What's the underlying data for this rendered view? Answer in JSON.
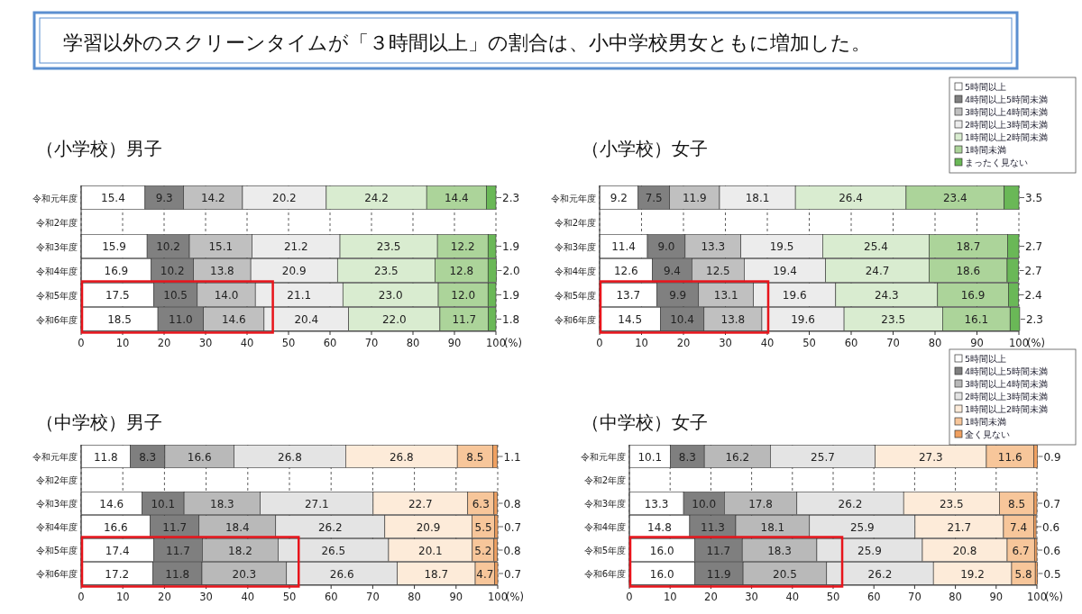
{
  "chart_data": [
    {
      "type": "other",
      "title": "学習以外のスクリーンタイムが「３時間以上」の割合は、小中学校男女ともに増加した。"
    },
    {
      "type": "bar",
      "orientation": "horizontal",
      "stacked": true,
      "title": "（小学校）男子",
      "xlabel": "(%)",
      "categories": [
        "令和元年度",
        "令和2年度",
        "令和3年度",
        "令和4年度",
        "令和5年度",
        "令和6年度"
      ],
      "xlim": [
        0,
        100
      ],
      "xticks": [
        0,
        10,
        20,
        30,
        40,
        50,
        60,
        70,
        80,
        90,
        100
      ],
      "grid": "x",
      "legend": false,
      "series": [
        {
          "color": "#ffffff",
          "values": [
            15.4,
            null,
            15.9,
            16.9,
            17.5,
            18.5
          ],
          "value_labels": [
            "15.4",
            null,
            "15.9",
            "16.9",
            "17.5",
            "18.5"
          ]
        },
        {
          "color": "#808080",
          "values": [
            9.3,
            null,
            10.2,
            10.2,
            10.5,
            11.0
          ],
          "value_labels": [
            "9.3",
            null,
            "10.2",
            "10.2",
            "10.5",
            "11.0"
          ]
        },
        {
          "color": "#c0c0c0",
          "values": [
            14.2,
            null,
            15.1,
            13.8,
            14.0,
            14.6
          ],
          "value_labels": [
            "14.2",
            null,
            "15.1",
            "13.8",
            "14.0",
            "14.6"
          ]
        },
        {
          "color": "#ececec",
          "values": [
            20.2,
            null,
            21.2,
            20.9,
            21.1,
            20.4
          ],
          "value_labels": [
            "20.2",
            null,
            "21.2",
            "20.9",
            "21.1",
            "20.4"
          ]
        },
        {
          "color": "#d9ecd0",
          "values": [
            24.2,
            null,
            23.5,
            23.5,
            23.0,
            22.0
          ],
          "value_labels": [
            "24.2",
            null,
            "23.5",
            "23.5",
            "23.0",
            "22.0"
          ]
        },
        {
          "color": "#acd49a",
          "values": [
            14.4,
            null,
            12.2,
            12.8,
            12.0,
            11.7
          ],
          "value_labels": [
            "14.4",
            null,
            "12.2",
            "12.8",
            "12.0",
            "11.7"
          ]
        },
        {
          "color": "#6ab857",
          "values": [
            2.3,
            null,
            1.9,
            2.0,
            1.9,
            1.8
          ],
          "value_labels": [
            "2.3",
            null,
            "1.9",
            "2.0",
            "1.9",
            "1.8"
          ]
        }
      ]
    },
    {
      "type": "bar",
      "orientation": "horizontal",
      "stacked": true,
      "title": "（小学校）女子",
      "xlabel": "(%)",
      "categories": [
        "令和元年度",
        "令和2年度",
        "令和3年度",
        "令和4年度",
        "令和5年度",
        "令和6年度"
      ],
      "xlim": [
        0,
        100
      ],
      "xticks": [
        0,
        10,
        20,
        30,
        40,
        50,
        60,
        70,
        80,
        90,
        100
      ],
      "grid": "x",
      "legend": "top right",
      "series": [
        {
          "name": "5時間以上",
          "color": "#ffffff",
          "values": [
            9.2,
            null,
            11.4,
            12.6,
            13.7,
            14.5
          ],
          "value_labels": [
            "9.2",
            null,
            "11.4",
            "12.6",
            "13.7",
            "14.5"
          ]
        },
        {
          "name": "4時間以上5時間未満",
          "color": "#808080",
          "values": [
            7.5,
            null,
            9.0,
            9.4,
            9.9,
            10.4
          ],
          "value_labels": [
            "7.5",
            null,
            "9.0",
            "9.4",
            "9.9",
            "10.4"
          ]
        },
        {
          "name": "3時間以上4時間未満",
          "color": "#c0c0c0",
          "values": [
            11.9,
            null,
            13.3,
            12.5,
            13.1,
            13.8
          ],
          "value_labels": [
            "11.9",
            null,
            "13.3",
            "12.5",
            "13.1",
            "13.8"
          ]
        },
        {
          "name": "2時間以上3時間未満",
          "color": "#ececec",
          "values": [
            18.1,
            null,
            19.5,
            19.4,
            19.6,
            19.6
          ],
          "value_labels": [
            "18.1",
            null,
            "19.5",
            "19.4",
            "19.6",
            "19.6"
          ]
        },
        {
          "name": "1時間以上2時間未満",
          "color": "#d9ecd0",
          "values": [
            26.4,
            null,
            25.4,
            24.7,
            24.3,
            23.5
          ],
          "value_labels": [
            "26.4",
            null,
            "25.4",
            "24.7",
            "24.3",
            "23.5"
          ]
        },
        {
          "name": "1時間未満",
          "color": "#acd49a",
          "values": [
            23.4,
            null,
            18.7,
            18.6,
            16.9,
            16.1
          ],
          "value_labels": [
            "23.4",
            null,
            "18.7",
            "18.6",
            "16.9",
            "16.1"
          ]
        },
        {
          "name": "まったく見ない",
          "color": "#6ab857",
          "values": [
            3.5,
            null,
            2.7,
            2.7,
            2.4,
            2.3
          ],
          "value_labels": [
            "3.5",
            null,
            "2.7",
            "2.7",
            "2.4",
            "2.3"
          ]
        }
      ]
    },
    {
      "type": "bar",
      "orientation": "horizontal",
      "stacked": true,
      "title": "（中学校）男子",
      "xlabel": "(%)",
      "categories": [
        "令和元年度",
        "令和2年度",
        "令和3年度",
        "令和4年度",
        "令和5年度",
        "令和6年度"
      ],
      "xlim": [
        0,
        100
      ],
      "xticks": [
        0,
        10,
        20,
        30,
        40,
        50,
        60,
        70,
        80,
        90,
        100
      ],
      "grid": "x",
      "legend": false,
      "series": [
        {
          "color": "#ffffff",
          "values": [
            11.8,
            null,
            14.6,
            16.6,
            17.4,
            17.2
          ],
          "value_labels": [
            "11.8",
            null,
            "14.6",
            "16.6",
            "17.4",
            "17.2"
          ]
        },
        {
          "color": "#7f7f7f",
          "values": [
            8.3,
            null,
            10.1,
            11.7,
            11.7,
            11.8
          ],
          "value_labels": [
            "8.3",
            null,
            "10.1",
            "11.7",
            "11.7",
            "11.8"
          ]
        },
        {
          "color": "#b9b9b9",
          "values": [
            16.6,
            null,
            18.3,
            18.4,
            18.2,
            20.3
          ],
          "value_labels": [
            "16.6",
            null,
            "18.3",
            "18.4",
            "18.2",
            "20.3"
          ]
        },
        {
          "color": "#e4e4e4",
          "values": [
            26.8,
            null,
            27.1,
            26.2,
            26.5,
            26.6
          ],
          "value_labels": [
            "26.8",
            null,
            "27.1",
            "26.2",
            "26.5",
            "26.6"
          ]
        },
        {
          "color": "#fdebd9",
          "values": [
            26.8,
            null,
            22.7,
            20.9,
            20.1,
            18.7
          ],
          "value_labels": [
            "26.8",
            null,
            "22.7",
            "20.9",
            "20.1",
            "18.7"
          ]
        },
        {
          "color": "#f7c69a",
          "values": [
            8.5,
            null,
            6.3,
            5.5,
            5.2,
            4.7
          ],
          "value_labels": [
            "8.5",
            null,
            "6.3",
            "5.5",
            "5.2",
            "4.7"
          ]
        },
        {
          "color": "#f0a060",
          "values": [
            1.1,
            null,
            0.8,
            0.7,
            0.8,
            0.7
          ],
          "value_labels": [
            "1.1",
            null,
            "0.8",
            "0.7",
            "0.8",
            "0.7"
          ]
        }
      ]
    },
    {
      "type": "bar",
      "orientation": "horizontal",
      "stacked": true,
      "title": "（中学校）女子",
      "xlabel": "(%)",
      "categories": [
        "令和元年度",
        "令和2年度",
        "令和3年度",
        "令和4年度",
        "令和5年度",
        "令和6年度"
      ],
      "xlim": [
        0,
        100
      ],
      "xticks": [
        0,
        10,
        20,
        30,
        40,
        50,
        60,
        70,
        80,
        90,
        100
      ],
      "grid": "x",
      "legend": "top right",
      "series": [
        {
          "name": "5時間以上",
          "color": "#ffffff",
          "values": [
            10.1,
            null,
            13.3,
            14.8,
            16.0,
            16.0
          ],
          "value_labels": [
            "10.1",
            null,
            "13.3",
            "14.8",
            "16.0",
            "16.0"
          ]
        },
        {
          "name": "4時間以上5時間未満",
          "color": "#7f7f7f",
          "values": [
            8.3,
            null,
            10.0,
            11.3,
            11.7,
            11.9
          ],
          "value_labels": [
            "8.3",
            null,
            "10.0",
            "11.3",
            "11.7",
            "11.9"
          ]
        },
        {
          "name": "3時間以上4時間未満",
          "color": "#b9b9b9",
          "values": [
            16.2,
            null,
            17.8,
            18.1,
            18.3,
            20.5
          ],
          "value_labels": [
            "16.2",
            null,
            "17.8",
            "18.1",
            "18.3",
            "20.5"
          ]
        },
        {
          "name": "2時間以上3時間未満",
          "color": "#e4e4e4",
          "values": [
            25.7,
            null,
            26.2,
            25.9,
            25.9,
            26.2
          ],
          "value_labels": [
            "25.7",
            null,
            "26.2",
            "25.9",
            "25.9",
            "26.2"
          ]
        },
        {
          "name": "1時間以上2時間未満",
          "color": "#fdebd9",
          "values": [
            27.3,
            null,
            23.5,
            21.7,
            20.8,
            19.2
          ],
          "value_labels": [
            "27.3",
            null,
            "23.5",
            "21.7",
            "20.8",
            "19.2"
          ]
        },
        {
          "name": "1時間未満",
          "color": "#f7c69a",
          "values": [
            11.6,
            null,
            8.5,
            7.4,
            6.7,
            5.8
          ],
          "value_labels": [
            "11.6",
            null,
            "8.5",
            "7.4",
            "6.7",
            "5.8"
          ]
        },
        {
          "name": "全く見ない",
          "color": "#f0a060",
          "values": [
            0.9,
            null,
            0.7,
            0.6,
            0.6,
            0.5
          ],
          "value_labels": [
            "0.9",
            null,
            "0.7",
            "0.6",
            "0.6",
            "0.5"
          ]
        }
      ]
    }
  ]
}
